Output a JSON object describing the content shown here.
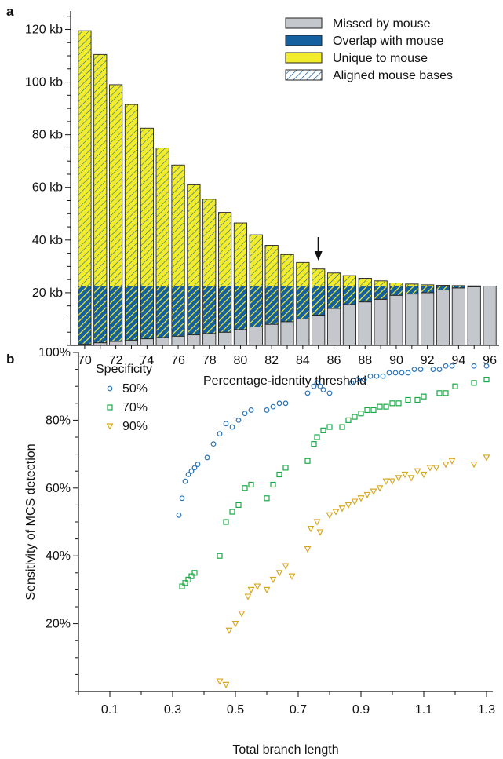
{
  "colors": {
    "missed": "#c4c7cc",
    "overlap": "#15609e",
    "unique": "#f2ec2c",
    "hatch": "#f2ec2c",
    "s50": "#2a74b5",
    "s70": "#1aaa45",
    "s90": "#d8a824"
  },
  "chart_data": [
    {
      "panel": "a",
      "type": "bar",
      "stacked": true,
      "xlabel": "Percentage-identity threshold",
      "ylabel": "",
      "ylim": [
        0,
        127
      ],
      "yticks": [
        20,
        40,
        60,
        80,
        100,
        120
      ],
      "ytick_labels": [
        "20 kb",
        "40 kb",
        "60 kb",
        "80 kb",
        "100 kb",
        "120 kb"
      ],
      "xtick_labels": [
        "70",
        "72",
        "74",
        "76",
        "78",
        "80",
        "82",
        "84",
        "86",
        "88",
        "90",
        "92",
        "94",
        "96"
      ],
      "categories": [
        70,
        71,
        72,
        73,
        74,
        75,
        76,
        77,
        78,
        79,
        80,
        81,
        82,
        83,
        84,
        85,
        86,
        87,
        88,
        89,
        90,
        91,
        92,
        93,
        94,
        95,
        96
      ],
      "series": [
        {
          "name": "Missed by mouse",
          "values": [
            0.5,
            1,
            1.5,
            2,
            2.5,
            3,
            3.5,
            4,
            4.5,
            5,
            6,
            7,
            8,
            9,
            10,
            11.5,
            14,
            15.5,
            16.5,
            17.5,
            19,
            19.5,
            20,
            21,
            21.8,
            22.2,
            22.5
          ]
        },
        {
          "name": "Overlap with mouse",
          "values": [
            22,
            21.5,
            21,
            20.5,
            20,
            19.5,
            19,
            18.5,
            18,
            17.5,
            16.5,
            15.5,
            14.5,
            13.5,
            12.5,
            11,
            8.5,
            7,
            6,
            5,
            3.5,
            3,
            2.5,
            1.5,
            0.7,
            0.3,
            0
          ]
        },
        {
          "name": "Unique to mouse",
          "values": [
            97,
            88,
            76.5,
            69,
            60,
            52.5,
            46,
            38.5,
            33,
            28,
            24,
            19.5,
            15.5,
            12,
            9,
            6.5,
            5,
            4,
            3,
            2,
            1.2,
            0.8,
            0.5,
            0.3,
            0.2,
            0.1,
            0
          ]
        }
      ],
      "legend": [
        "Missed by mouse",
        "Overlap with mouse",
        "Unique to mouse",
        "Aligned mouse bases"
      ],
      "legend_position": "top-right",
      "annotation": {
        "type": "arrow",
        "x": 85
      }
    },
    {
      "panel": "b",
      "type": "scatter",
      "xlabel": "Total branch length",
      "ylabel": "Sensitivity of MCS detection",
      "xlim": [
        0,
        1.32
      ],
      "ylim": [
        0,
        100
      ],
      "xticks": [
        "0.1",
        "0.3",
        "0.5",
        "0.7",
        "0.9",
        "1.1",
        "1.3"
      ],
      "yticks": [
        "20%",
        "40%",
        "60%",
        "80%",
        "100%"
      ],
      "legend_title": "Specificity",
      "legend_position": "top-left",
      "series": [
        {
          "name": "50%",
          "marker": "circle",
          "x": [
            0.32,
            0.33,
            0.34,
            0.35,
            0.36,
            0.37,
            0.38,
            0.41,
            0.43,
            0.45,
            0.47,
            0.49,
            0.51,
            0.53,
            0.55,
            0.6,
            0.62,
            0.64,
            0.66,
            0.73,
            0.75,
            0.76,
            0.77,
            0.78,
            0.8,
            0.87,
            0.89,
            0.91,
            0.93,
            0.95,
            0.97,
            0.99,
            1.01,
            1.03,
            1.05,
            1.07,
            1.09,
            1.13,
            1.15,
            1.17,
            1.19,
            1.26,
            1.3
          ],
          "y": [
            52,
            57,
            62,
            64,
            65,
            66,
            67,
            69,
            73,
            76,
            79,
            78,
            80,
            82,
            83,
            83,
            84,
            85,
            85,
            88,
            90,
            91,
            90,
            89,
            88,
            91,
            92,
            92,
            93,
            93,
            93,
            94,
            94,
            94,
            94,
            95,
            95,
            95,
            95,
            96,
            96,
            96,
            96
          ]
        },
        {
          "name": "70%",
          "marker": "square",
          "x": [
            0.33,
            0.34,
            0.35,
            0.36,
            0.37,
            0.45,
            0.47,
            0.49,
            0.51,
            0.53,
            0.55,
            0.6,
            0.62,
            0.64,
            0.66,
            0.73,
            0.75,
            0.76,
            0.78,
            0.8,
            0.84,
            0.86,
            0.88,
            0.9,
            0.92,
            0.94,
            0.96,
            0.98,
            1.0,
            1.02,
            1.05,
            1.08,
            1.1,
            1.15,
            1.17,
            1.2,
            1.26,
            1.3
          ],
          "y": [
            31,
            32,
            33,
            34,
            35,
            40,
            50,
            53,
            55,
            60,
            61,
            57,
            61,
            64,
            66,
            68,
            73,
            75,
            77,
            78,
            78,
            80,
            81,
            82,
            83,
            83,
            84,
            84,
            85,
            85,
            86,
            86,
            87,
            88,
            88,
            90,
            91,
            92
          ]
        },
        {
          "name": "90%",
          "marker": "triangle",
          "x": [
            0.45,
            0.47,
            0.48,
            0.5,
            0.52,
            0.54,
            0.55,
            0.57,
            0.6,
            0.62,
            0.64,
            0.66,
            0.68,
            0.73,
            0.74,
            0.76,
            0.77,
            0.8,
            0.82,
            0.84,
            0.86,
            0.88,
            0.9,
            0.92,
            0.94,
            0.96,
            0.98,
            1.0,
            1.02,
            1.04,
            1.06,
            1.08,
            1.1,
            1.12,
            1.14,
            1.17,
            1.19,
            1.26,
            1.3
          ],
          "y": [
            3,
            2,
            18,
            20,
            23,
            28,
            30,
            31,
            30,
            33,
            35,
            37,
            34,
            42,
            48,
            50,
            47,
            52,
            53,
            54,
            55,
            56,
            57,
            58,
            59,
            60,
            62,
            62,
            63,
            64,
            63,
            65,
            64,
            66,
            66,
            67,
            68,
            67,
            69
          ]
        }
      ]
    }
  ]
}
